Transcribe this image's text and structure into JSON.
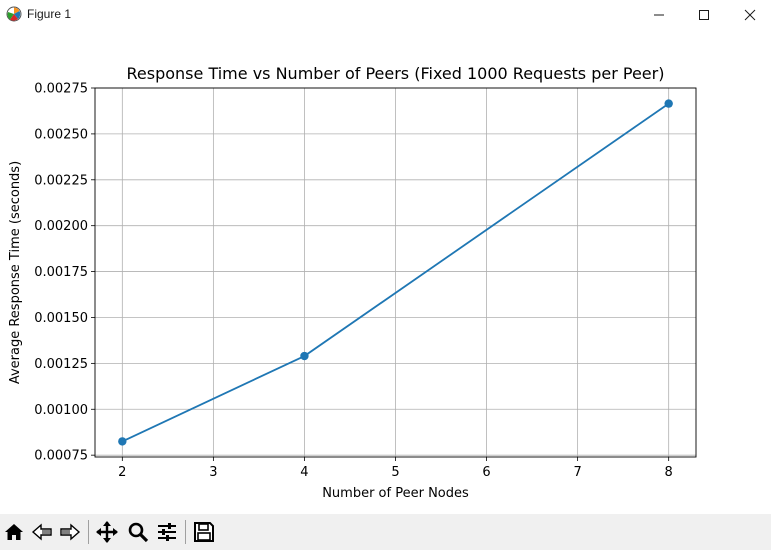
{
  "window": {
    "title": "Figure 1"
  },
  "chart_data": {
    "type": "line",
    "title": "Response Time vs Number of Peers (Fixed 1000 Requests per Peer)",
    "xlabel": "Number of Peer Nodes",
    "ylabel": "Average Response Time (seconds)",
    "x": [
      2,
      4,
      8
    ],
    "y": [
      0.000825,
      0.00129,
      0.002665
    ],
    "xlim": [
      1.7,
      8.3
    ],
    "ylim": [
      0.00074,
      0.00275
    ],
    "xticks": [
      "2",
      "3",
      "4",
      "5",
      "6",
      "7",
      "8"
    ],
    "yticks": [
      "0.00075",
      "0.00100",
      "0.00125",
      "0.00150",
      "0.00175",
      "0.00200",
      "0.00225",
      "0.00250",
      "0.00275"
    ],
    "grid": true,
    "line_color": "#1f77b4",
    "marker": "circle"
  },
  "toolbar": {
    "buttons": [
      {
        "name": "home-icon"
      },
      {
        "name": "back-arrow-icon"
      },
      {
        "name": "forward-arrow-icon"
      },
      {
        "name": "pan-icon"
      },
      {
        "name": "zoom-icon"
      },
      {
        "name": "configure-subplots-icon"
      },
      {
        "name": "save-icon"
      }
    ]
  }
}
